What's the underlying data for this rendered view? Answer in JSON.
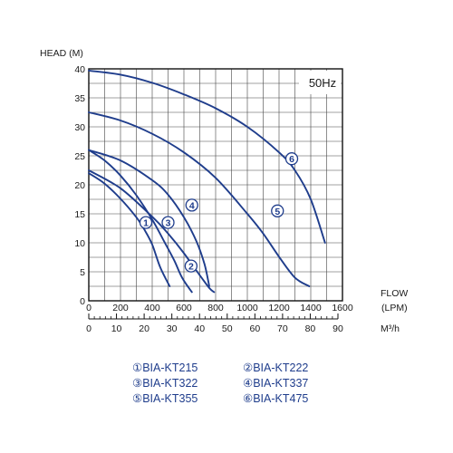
{
  "chart_data": {
    "type": "line",
    "frequency_label": "50Hz",
    "ylabel": "HEAD  (M)",
    "xlabel_top": "FLOW",
    "xlabel_top_unit": "(LPM)",
    "xlabel_bottom": "M³/h",
    "ylim": [
      0,
      40
    ],
    "xlim_lpm": [
      0,
      1600
    ],
    "xlim_m3h": [
      0,
      90
    ],
    "y_ticks": [
      0,
      5,
      10,
      15,
      20,
      25,
      30,
      35,
      40
    ],
    "x_ticks_lpm": [
      0,
      200,
      400,
      600,
      800,
      1000,
      1200,
      1400,
      1600
    ],
    "x_ticks_m3h": [
      0,
      10,
      20,
      30,
      40,
      50,
      60,
      70,
      80,
      90
    ],
    "grid": true,
    "line_color": "#1f3d8c",
    "series": [
      {
        "marker": "1",
        "name": "BIA-KT215",
        "x": [
          0,
          100,
          200,
          300,
          350,
          400,
          450,
          510
        ],
        "y": [
          22,
          20.2,
          17.6,
          14.4,
          12.3,
          9.7,
          5.8,
          2.5
        ],
        "label_at": [
          360,
          13.5
        ]
      },
      {
        "marker": "2",
        "name": "BIA-KT222",
        "x": [
          0,
          200,
          400,
          500,
          600,
          700,
          760,
          790
        ],
        "y": [
          22.5,
          19.4,
          14.5,
          11.6,
          8.2,
          4.4,
          2.2,
          1.5
        ],
        "label_at": [
          645,
          6
        ]
      },
      {
        "marker": "3",
        "name": "BIA-KT322",
        "x": [
          0,
          100,
          200,
          300,
          400,
          480,
          540,
          590,
          650
        ],
        "y": [
          26,
          24.2,
          21.6,
          18.2,
          14.0,
          10.0,
          6.9,
          3.9,
          1.5
        ],
        "label_at": [
          500,
          13.5
        ]
      },
      {
        "marker": "4",
        "name": "BIA-KT337",
        "x": [
          0,
          200,
          400,
          500,
          600,
          680,
          730,
          760
        ],
        "y": [
          26,
          24.2,
          20.8,
          18.3,
          14.4,
          10.2,
          6.3,
          2.5
        ],
        "label_at": [
          650,
          16.5
        ]
      },
      {
        "marker": "5",
        "name": "BIA-KT355",
        "x": [
          0,
          200,
          400,
          600,
          800,
          1000,
          1100,
          1200,
          1300,
          1390
        ],
        "y": [
          32.5,
          31.1,
          28.8,
          25.6,
          21.2,
          15.0,
          11.6,
          7.6,
          4.0,
          2.5
        ],
        "label_at": [
          1190,
          15.5
        ]
      },
      {
        "marker": "6",
        "name": "BIA-KT475",
        "x": [
          0,
          200,
          400,
          600,
          800,
          1000,
          1200,
          1300,
          1400,
          1490
        ],
        "y": [
          39.7,
          39.0,
          37.6,
          35.6,
          33.2,
          30.0,
          25.6,
          22.5,
          17.5,
          10.0
        ],
        "label_at": [
          1280,
          24.5
        ]
      }
    ]
  },
  "legend": {
    "col1": [
      "①BIA-KT215",
      "③BIA-KT322",
      "⑤BIA-KT355"
    ],
    "col2": [
      "②BIA-KT222",
      "④BIA-KT337",
      "⑥BIA-KT475"
    ]
  }
}
